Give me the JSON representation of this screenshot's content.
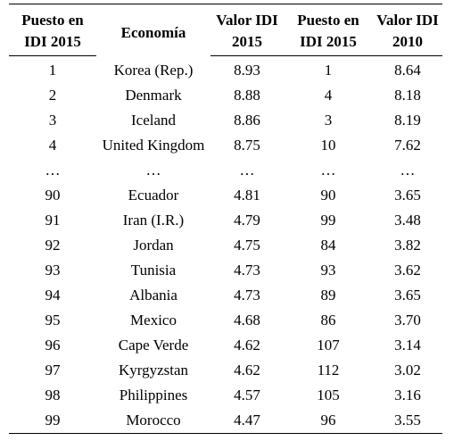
{
  "header": {
    "rank2015_line1": "Puesto en",
    "rank2015_line2": "IDI 2015",
    "economy": "Economía",
    "value2015_line1": "Valor IDI",
    "value2015_line2": "2015",
    "rank2010_line1": "Puesto en",
    "rank2010_line2": "IDI 2015",
    "value2010_line1": "Valor IDI",
    "value2010_line2": "2010"
  },
  "rows": [
    {
      "rank2015": "1",
      "economy": "Korea (Rep.)",
      "value2015": "8.93",
      "rank2010": "1",
      "value2010": "8.64"
    },
    {
      "rank2015": "2",
      "economy": "Denmark",
      "value2015": "8.88",
      "rank2010": "4",
      "value2010": "8.18"
    },
    {
      "rank2015": "3",
      "economy": "Iceland",
      "value2015": "8.86",
      "rank2010": "3",
      "value2010": "8.19"
    },
    {
      "rank2015": "4",
      "economy": "United Kingdom",
      "value2015": "8.75",
      "rank2010": "10",
      "value2010": "7.62"
    },
    {
      "rank2015": "…",
      "economy": "…",
      "value2015": "…",
      "rank2010": "…",
      "value2010": "…"
    },
    {
      "rank2015": "90",
      "economy": "Ecuador",
      "value2015": "4.81",
      "rank2010": "90",
      "value2010": "3.65"
    },
    {
      "rank2015": "91",
      "economy": "Iran (I.R.)",
      "value2015": "4.79",
      "rank2010": "99",
      "value2010": "3.48"
    },
    {
      "rank2015": "92",
      "economy": "Jordan",
      "value2015": "4.75",
      "rank2010": "84",
      "value2010": "3.82"
    },
    {
      "rank2015": "93",
      "economy": "Tunisia",
      "value2015": "4.73",
      "rank2010": "93",
      "value2010": "3.62"
    },
    {
      "rank2015": "94",
      "economy": "Albania",
      "value2015": "4.73",
      "rank2010": "89",
      "value2010": "3.65"
    },
    {
      "rank2015": "95",
      "economy": "Mexico",
      "value2015": "4.68",
      "rank2010": "86",
      "value2010": "3.70"
    },
    {
      "rank2015": "96",
      "economy": "Cape Verde",
      "value2015": "4.62",
      "rank2010": "107",
      "value2010": "3.14"
    },
    {
      "rank2015": "97",
      "economy": "Kyrgyzstan",
      "value2015": "4.62",
      "rank2010": "112",
      "value2010": "3.02"
    },
    {
      "rank2015": "98",
      "economy": "Philippines",
      "value2015": "4.57",
      "rank2010": "105",
      "value2010": "3.16"
    },
    {
      "rank2015": "99",
      "economy": "Morocco",
      "value2015": "4.47",
      "rank2010": "96",
      "value2010": "3.55"
    }
  ]
}
